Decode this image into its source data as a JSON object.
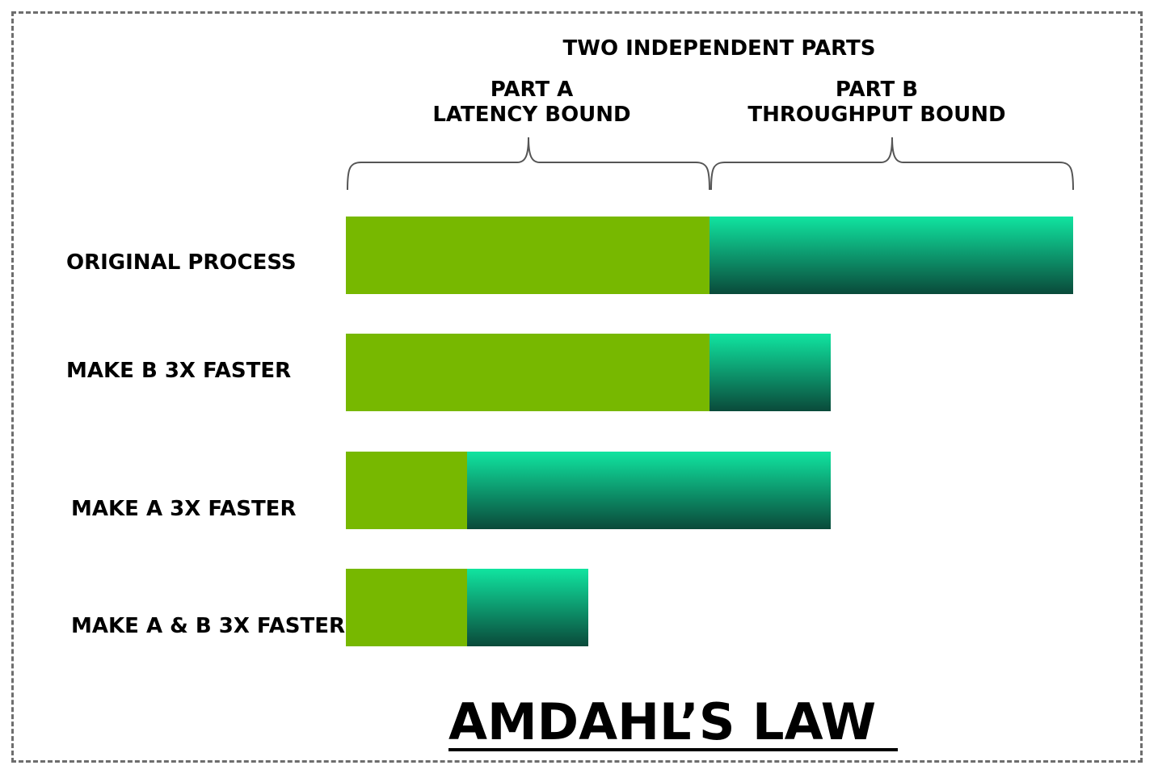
{
  "header": {
    "text": "TWO INDEPENDENT PARTS"
  },
  "parts": [
    {
      "line1": "PART A",
      "line2": "LATENCY BOUND"
    },
    {
      "line1": "PART B",
      "line2": "THROUGHPUT BOUND"
    }
  ],
  "rows": [
    {
      "label": "ORIGINAL PROCESS",
      "a": 3,
      "b": 3
    },
    {
      "label": "MAKE B 3X FASTER",
      "a": 3,
      "b": 1
    },
    {
      "label": "MAKE A 3X FASTER",
      "a": 1,
      "b": 3
    },
    {
      "label": "MAKE A & B 3X FASTER",
      "a": 1,
      "b": 1
    }
  ],
  "title": "AMDAHL’S LAW",
  "colors": {
    "part_a": "#77b800",
    "part_b_top": "#10e4a0",
    "part_b_bottom": "#0a4a3a"
  }
}
